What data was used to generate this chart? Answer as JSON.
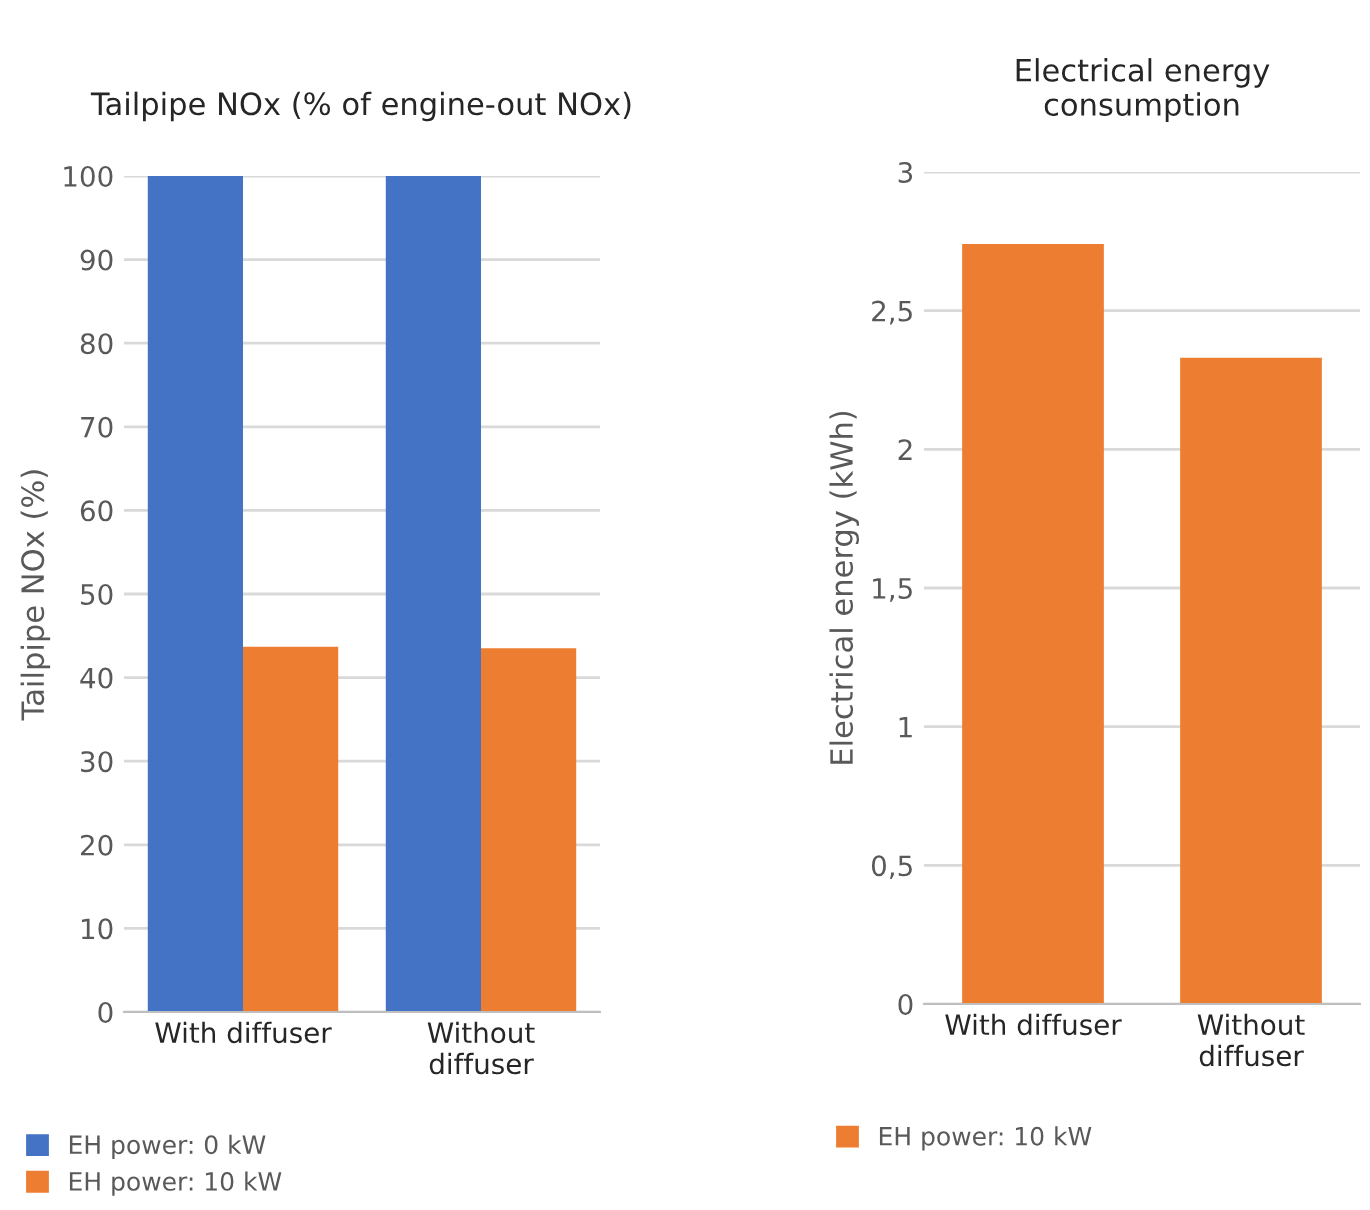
{
  "chart_data": [
    {
      "type": "bar",
      "title": "Tailpipe NOx (% of engine-out NOx)",
      "ylabel": "Tailpipe NOx (%)",
      "categories": [
        "With diffuser",
        "Without\ndiffuser"
      ],
      "series": [
        {
          "name": "EH power: 0 kW",
          "color": "#4472c4",
          "values": [
            100,
            100
          ]
        },
        {
          "name": "EH power: 10 kW",
          "color": "#ed7d31",
          "values": [
            43.7,
            43.5
          ]
        }
      ],
      "ylim": [
        0,
        100
      ],
      "yticks": [
        0,
        10,
        20,
        30,
        40,
        50,
        60,
        70,
        80,
        90,
        100
      ],
      "grid": "y",
      "legend": "bottom left"
    },
    {
      "type": "bar",
      "title": "Electrical energy consumption",
      "ylabel": "Electrical energy (kWh)",
      "categories": [
        "With diffuser",
        "Without\ndiffuser"
      ],
      "series": [
        {
          "name": "EH power: 10 kW",
          "color": "#ed7d31",
          "values": [
            2.74,
            2.33
          ]
        }
      ],
      "ylim": [
        0,
        3
      ],
      "yticks": [
        0,
        {
          "value": 0.5,
          "label": "0,5"
        },
        1,
        {
          "value": 1.5,
          "label": "1,5"
        },
        2,
        {
          "value": 2.5,
          "label": "2,5"
        },
        3
      ],
      "grid": "y",
      "legend": "bottom left"
    }
  ]
}
